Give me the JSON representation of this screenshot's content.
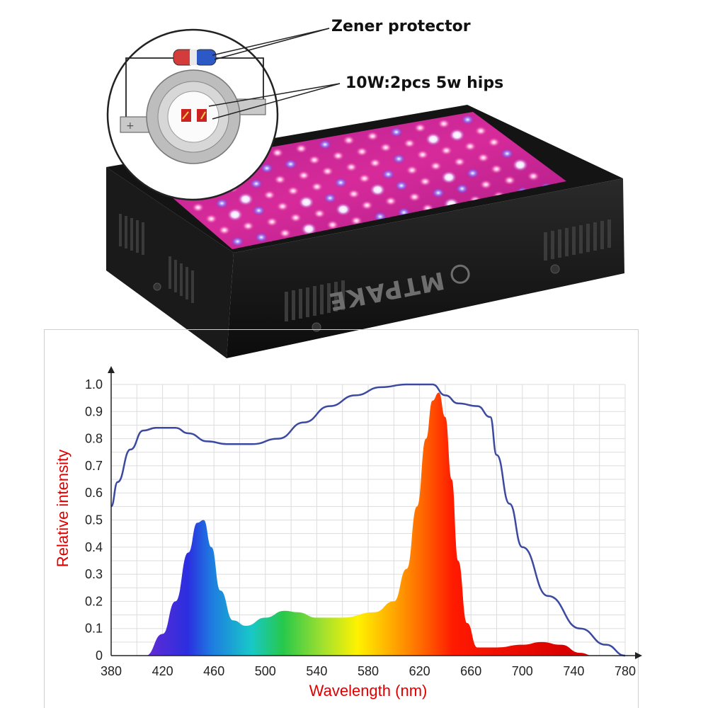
{
  "callouts": {
    "zener": "Zener protector",
    "chip": "10W:2pcs 5w hips"
  },
  "device": {
    "brand": "MTPAKE",
    "body_color": "#1b1b1b",
    "panel_color": "#c7208f"
  },
  "chart_data": {
    "type": "area",
    "title": "",
    "xlabel": "Wavelength (nm)",
    "ylabel": "Relative intensity",
    "label_color": "#e00000",
    "xlim": [
      380,
      780
    ],
    "ylim": [
      0,
      1.0
    ],
    "xticks": [
      "380",
      "420",
      "460",
      "500",
      "540",
      "580",
      "620",
      "660",
      "700",
      "740",
      "780"
    ],
    "yticks": [
      "0",
      "0.1",
      "0.2",
      "0.3",
      "0.4",
      "0.5",
      "0.6",
      "0.7",
      "0.8",
      "0.9",
      "1.0"
    ],
    "grid": true,
    "series": [
      {
        "kind": "emission-area",
        "color": "spectrum-gradient",
        "x": [
          407,
          420,
          430,
          440,
          447,
          452,
          458,
          465,
          475,
          485,
          500,
          515,
          525,
          540,
          560,
          585,
          600,
          610,
          618,
          625,
          630,
          635,
          640,
          645,
          650,
          657,
          665,
          680,
          700,
          715,
          730,
          745,
          755
        ],
        "y": [
          0,
          0.08,
          0.2,
          0.38,
          0.49,
          0.5,
          0.4,
          0.24,
          0.13,
          0.11,
          0.14,
          0.165,
          0.16,
          0.14,
          0.14,
          0.16,
          0.2,
          0.32,
          0.55,
          0.8,
          0.94,
          0.97,
          0.88,
          0.65,
          0.35,
          0.12,
          0.03,
          0.03,
          0.04,
          0.05,
          0.04,
          0.01,
          0
        ]
      },
      {
        "kind": "line",
        "color": "#3b4aa0",
        "x": [
          380,
          385,
          395,
          405,
          415,
          430,
          440,
          455,
          470,
          490,
          510,
          530,
          550,
          570,
          590,
          610,
          620,
          630,
          640,
          650,
          665,
          675,
          680,
          690,
          700,
          720,
          745,
          765,
          780
        ],
        "y": [
          0.55,
          0.64,
          0.76,
          0.83,
          0.84,
          0.84,
          0.82,
          0.79,
          0.78,
          0.78,
          0.8,
          0.86,
          0.92,
          0.96,
          0.99,
          1.0,
          1.0,
          1.0,
          0.96,
          0.93,
          0.92,
          0.88,
          0.74,
          0.56,
          0.4,
          0.22,
          0.1,
          0.04,
          0
        ]
      }
    ]
  }
}
